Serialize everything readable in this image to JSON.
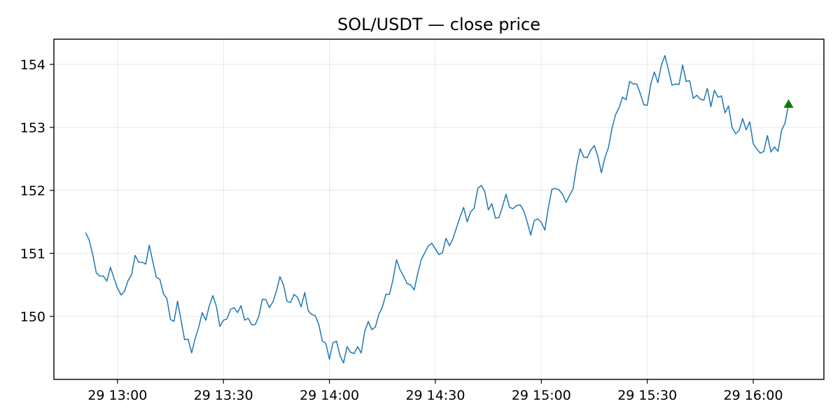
{
  "chart_data": {
    "type": "line",
    "title": "SOL/USDT — close price",
    "xlabel": "",
    "ylabel": "",
    "x_time_start": "12:51",
    "x_time_step_minutes": 1,
    "x_ticks": [
      "29 13:00",
      "29 13:30",
      "29 14:00",
      "29 14:30",
      "29 15:00",
      "29 15:30",
      "29 16:00"
    ],
    "x_tick_times": [
      "13:00",
      "13:30",
      "14:00",
      "14:30",
      "15:00",
      "15:30",
      "16:00"
    ],
    "x_range": [
      "12:42",
      "16:20"
    ],
    "y_ticks": [
      150,
      151,
      152,
      153,
      154
    ],
    "ylim": [
      149.0,
      154.4
    ],
    "grid": true,
    "colors": {
      "line": "#1f77b4",
      "marker": "#008000"
    },
    "series": [
      {
        "values": [
          151.33,
          151.21,
          150.98,
          150.69,
          150.64,
          150.64,
          150.56,
          150.78,
          150.61,
          150.45,
          150.34,
          150.4,
          150.57,
          150.66,
          150.97,
          150.86,
          150.86,
          150.83,
          151.13,
          150.87,
          150.62,
          150.59,
          150.36,
          150.28,
          149.95,
          149.92,
          150.24,
          149.94,
          149.63,
          149.64,
          149.42,
          149.65,
          149.83,
          150.06,
          149.94,
          150.17,
          150.33,
          150.16,
          149.84,
          149.94,
          149.96,
          150.11,
          150.14,
          150.06,
          150.17,
          149.94,
          149.97,
          149.87,
          149.87,
          150.0,
          150.27,
          150.27,
          150.14,
          150.23,
          150.4,
          150.63,
          150.5,
          150.24,
          150.22,
          150.35,
          150.3,
          150.15,
          150.38,
          150.09,
          150.03,
          150.01,
          149.87,
          149.61,
          149.57,
          149.32,
          149.58,
          149.61,
          149.38,
          149.26,
          149.52,
          149.43,
          149.41,
          149.52,
          149.42,
          149.76,
          149.92,
          149.79,
          149.83,
          150.03,
          150.15,
          150.35,
          150.35,
          150.58,
          150.9,
          150.74,
          150.64,
          150.52,
          150.5,
          150.42,
          150.68,
          150.9,
          151.01,
          151.12,
          151.16,
          151.07,
          150.98,
          151.01,
          151.24,
          151.12,
          151.24,
          151.41,
          151.58,
          151.73,
          151.5,
          151.66,
          151.72,
          152.03,
          152.08,
          151.98,
          151.69,
          151.79,
          151.56,
          151.57,
          151.74,
          151.94,
          151.73,
          151.71,
          151.76,
          151.77,
          151.68,
          151.5,
          151.29,
          151.52,
          151.55,
          151.49,
          151.37,
          151.73,
          152.02,
          152.03,
          152.01,
          151.94,
          151.81,
          151.92,
          152.03,
          152.39,
          152.66,
          152.53,
          152.52,
          152.64,
          152.71,
          152.54,
          152.28,
          152.52,
          152.68,
          152.98,
          153.2,
          153.31,
          153.48,
          153.44,
          153.73,
          153.69,
          153.69,
          153.54,
          153.36,
          153.35,
          153.69,
          153.88,
          153.71,
          153.99,
          154.14,
          153.91,
          153.67,
          153.69,
          153.68,
          153.99,
          153.73,
          153.74,
          153.46,
          153.51,
          153.45,
          153.43,
          153.62,
          153.33,
          153.59,
          153.48,
          153.5,
          153.23,
          153.34,
          153.0,
          152.9,
          152.95,
          153.14,
          152.96,
          153.09,
          152.74,
          152.66,
          152.59,
          152.62,
          152.87,
          152.61,
          152.69,
          152.62,
          152.95,
          153.07,
          153.37
        ]
      }
    ],
    "markers": [
      {
        "type": "triangle-up",
        "x": "16:10",
        "y": 153.37
      }
    ]
  }
}
